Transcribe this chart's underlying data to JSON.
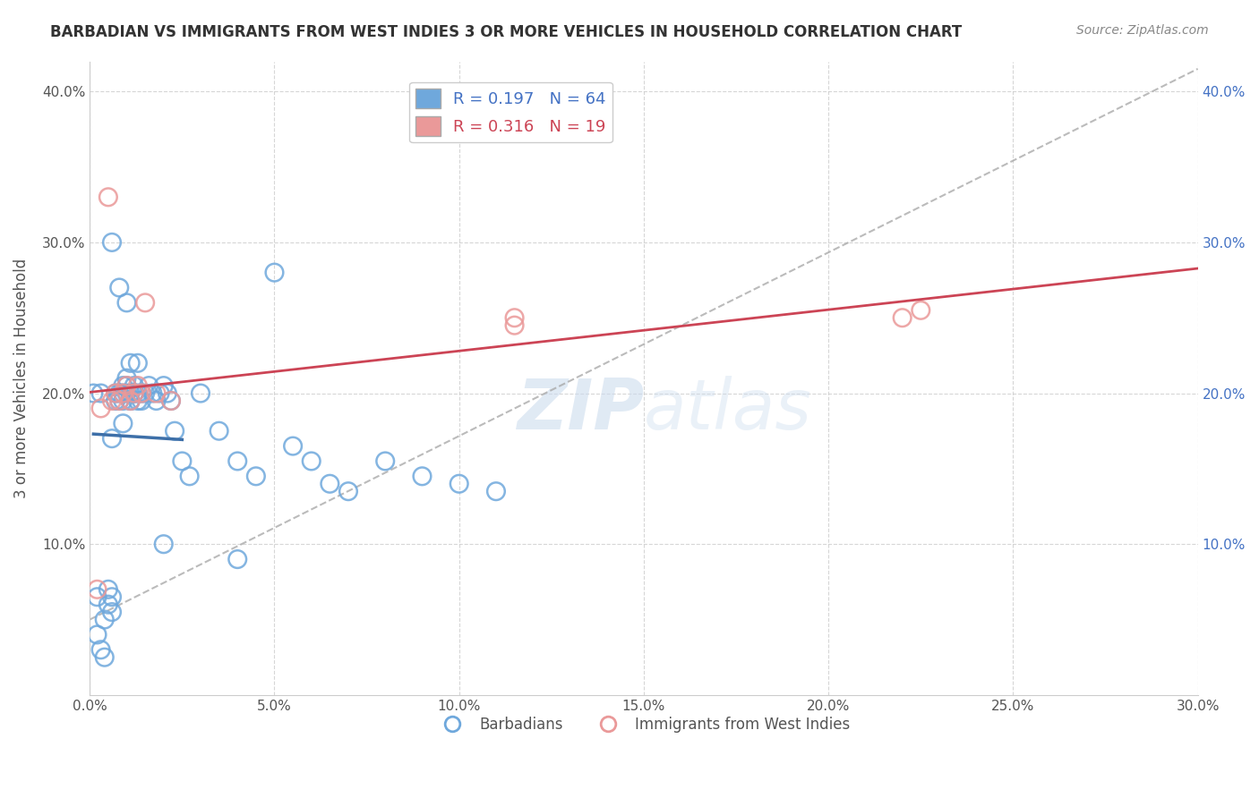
{
  "title": "BARBADIAN VS IMMIGRANTS FROM WEST INDIES 3 OR MORE VEHICLES IN HOUSEHOLD CORRELATION CHART",
  "source": "Source: ZipAtlas.com",
  "ylabel": "3 or more Vehicles in Household",
  "xlim": [
    0.0,
    0.3
  ],
  "ylim": [
    0.0,
    0.42
  ],
  "xtick_vals": [
    0.0,
    0.05,
    0.1,
    0.15,
    0.2,
    0.25,
    0.3
  ],
  "ytick_vals": [
    0.1,
    0.2,
    0.3,
    0.4
  ],
  "blue_color": "#6fa8dc",
  "pink_color": "#ea9999",
  "blue_line_color": "#3d6fa8",
  "pink_line_color": "#cc4455",
  "dashed_line_color": "#aaaaaa",
  "R_blue": 0.197,
  "N_blue": 64,
  "R_pink": 0.316,
  "N_pink": 19,
  "watermark_zip": "ZIP",
  "watermark_atlas": "atlas",
  "blue_scatter_x": [
    0.001,
    0.002,
    0.002,
    0.003,
    0.003,
    0.004,
    0.004,
    0.005,
    0.005,
    0.006,
    0.006,
    0.006,
    0.007,
    0.007,
    0.008,
    0.008,
    0.009,
    0.009,
    0.009,
    0.01,
    0.01,
    0.01,
    0.011,
    0.011,
    0.011,
    0.011,
    0.012,
    0.012,
    0.012,
    0.013,
    0.013,
    0.013,
    0.014,
    0.014,
    0.015,
    0.016,
    0.017,
    0.018,
    0.019,
    0.02,
    0.021,
    0.022,
    0.023,
    0.025,
    0.027,
    0.03,
    0.035,
    0.04,
    0.045,
    0.05,
    0.055,
    0.06,
    0.065,
    0.07,
    0.08,
    0.09,
    0.1,
    0.11,
    0.02,
    0.04,
    0.006,
    0.01,
    0.008,
    0.009
  ],
  "blue_scatter_y": [
    0.2,
    0.065,
    0.04,
    0.03,
    0.2,
    0.025,
    0.05,
    0.06,
    0.07,
    0.055,
    0.065,
    0.17,
    0.195,
    0.2,
    0.195,
    0.2,
    0.205,
    0.195,
    0.2,
    0.21,
    0.205,
    0.2,
    0.195,
    0.2,
    0.22,
    0.195,
    0.2,
    0.205,
    0.2,
    0.195,
    0.22,
    0.2,
    0.2,
    0.195,
    0.2,
    0.205,
    0.2,
    0.195,
    0.2,
    0.205,
    0.2,
    0.195,
    0.175,
    0.155,
    0.145,
    0.2,
    0.175,
    0.155,
    0.145,
    0.28,
    0.165,
    0.155,
    0.14,
    0.135,
    0.155,
    0.145,
    0.14,
    0.135,
    0.1,
    0.09,
    0.3,
    0.26,
    0.27,
    0.18
  ],
  "pink_scatter_x": [
    0.002,
    0.003,
    0.005,
    0.006,
    0.007,
    0.008,
    0.009,
    0.01,
    0.011,
    0.012,
    0.013,
    0.014,
    0.015,
    0.018,
    0.022,
    0.115,
    0.115,
    0.22,
    0.225
  ],
  "pink_scatter_y": [
    0.07,
    0.19,
    0.33,
    0.195,
    0.2,
    0.195,
    0.2,
    0.205,
    0.195,
    0.2,
    0.205,
    0.2,
    0.26,
    0.2,
    0.195,
    0.245,
    0.25,
    0.25,
    0.255
  ]
}
